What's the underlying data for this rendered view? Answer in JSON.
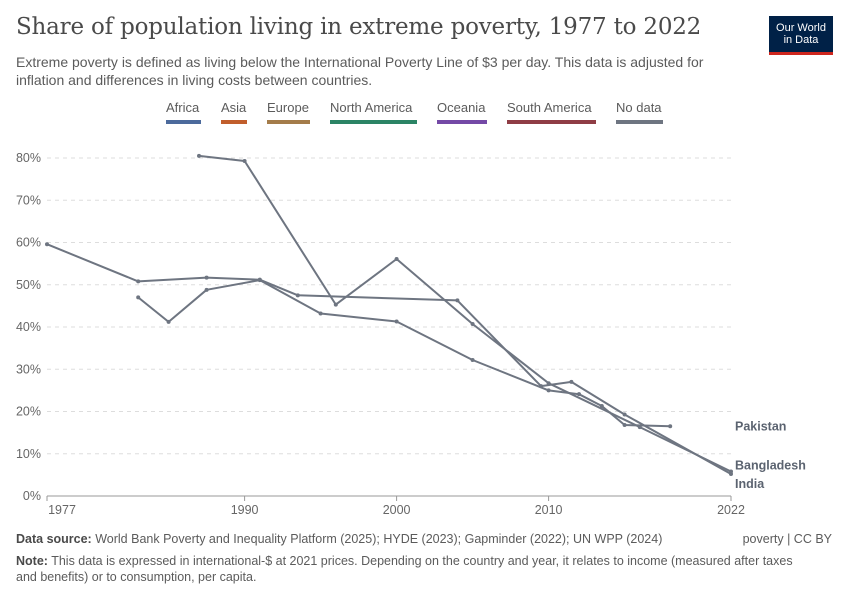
{
  "header": {
    "title": "Share of population living in extreme poverty, 1977 to 2022",
    "subtitle": "Extreme poverty is defined as living below the International Poverty Line of $3 per day. This data is adjusted for inflation and differences in living costs between countries."
  },
  "logo": {
    "line1": "Our World",
    "line2": "in Data",
    "bg_color": "#002147",
    "accent_color": "#ce261e"
  },
  "legend": [
    {
      "label": "Africa",
      "color": "#4c6a9c"
    },
    {
      "label": "Asia",
      "color": "#c15e2c"
    },
    {
      "label": "Europe",
      "color": "#a47c4a"
    },
    {
      "label": "North America",
      "color": "#2b8465"
    },
    {
      "label": "Oceania",
      "color": "#7449a6"
    },
    {
      "label": "South America",
      "color": "#8f3d45"
    },
    {
      "label": "No data",
      "color": "#6e7581"
    }
  ],
  "chart_data": {
    "type": "line",
    "title": "Share of population living in extreme poverty, 1977 to 2022",
    "xlabel": "",
    "ylabel": "",
    "xlim": [
      1977,
      2022
    ],
    "ylim": [
      0,
      80
    ],
    "yticks": [
      0,
      10,
      20,
      30,
      40,
      50,
      60,
      70,
      80
    ],
    "ytick_labels": [
      "0%",
      "10%",
      "20%",
      "30%",
      "40%",
      "50%",
      "60%",
      "70%",
      "80%"
    ],
    "xticks": [
      1977,
      1990,
      2000,
      2010,
      2022
    ],
    "xtick_labels": [
      "1977",
      "1990",
      "2000",
      "2010",
      "2022"
    ],
    "grid": true,
    "line_color": "#6e7581",
    "series": [
      {
        "name": "India",
        "x": [
          1977,
          1983,
          1987.5,
          1991,
          1993.5,
          2004,
          2009.5,
          2011.5,
          2015,
          2022
        ],
        "y": [
          59.6,
          50.8,
          51.7,
          51.2,
          47.5,
          46.3,
          26.0,
          27.0,
          19.3,
          5.2
        ]
      },
      {
        "name": "Bangladesh",
        "x": [
          1987,
          1990,
          1996,
          2000,
          2005,
          2010,
          2016,
          2022
        ],
        "y": [
          80.5,
          79.3,
          45.3,
          56.1,
          40.7,
          26.7,
          16.3,
          5.8
        ]
      },
      {
        "name": "Pakistan",
        "x": [
          1983,
          1985,
          1987.5,
          1991,
          1995,
          2000,
          2005,
          2010,
          2012,
          2013.5,
          2015,
          2018
        ],
        "y": [
          47.0,
          41.2,
          48.8,
          51.1,
          43.2,
          41.3,
          32.2,
          25.0,
          24.1,
          21.3,
          16.8,
          16.5
        ]
      }
    ],
    "end_labels": [
      {
        "series": "Pakistan",
        "label": "Pakistan"
      },
      {
        "series": "Bangladesh",
        "label": "Bangladesh"
      },
      {
        "series": "India",
        "label": "India"
      }
    ]
  },
  "footer": {
    "source_label": "Data source:",
    "source_text": "World Bank Poverty and Inequality Platform (2025); HYDE (2023); Gapminder (2022); UN WPP (2024)",
    "license": "poverty | CC BY",
    "note_label": "Note:",
    "note_text": "This data is expressed in international-$ at 2021 prices. Depending on the country and year, it relates to income (measured after taxes and benefits) or to consumption, per capita."
  }
}
